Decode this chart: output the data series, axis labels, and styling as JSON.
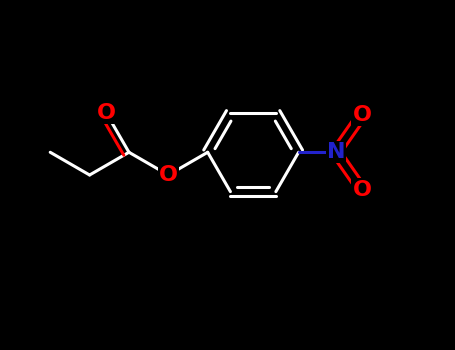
{
  "background_color": "#000000",
  "bond_color": "#ffffff",
  "O_color": "#ff0000",
  "N_color": "#2222cc",
  "bond_width": 2.2,
  "label_fontsize": 16,
  "figsize": [
    4.55,
    3.5
  ],
  "dpi": 100,
  "xlim": [
    0,
    10
  ],
  "ylim": [
    0,
    7.7
  ]
}
